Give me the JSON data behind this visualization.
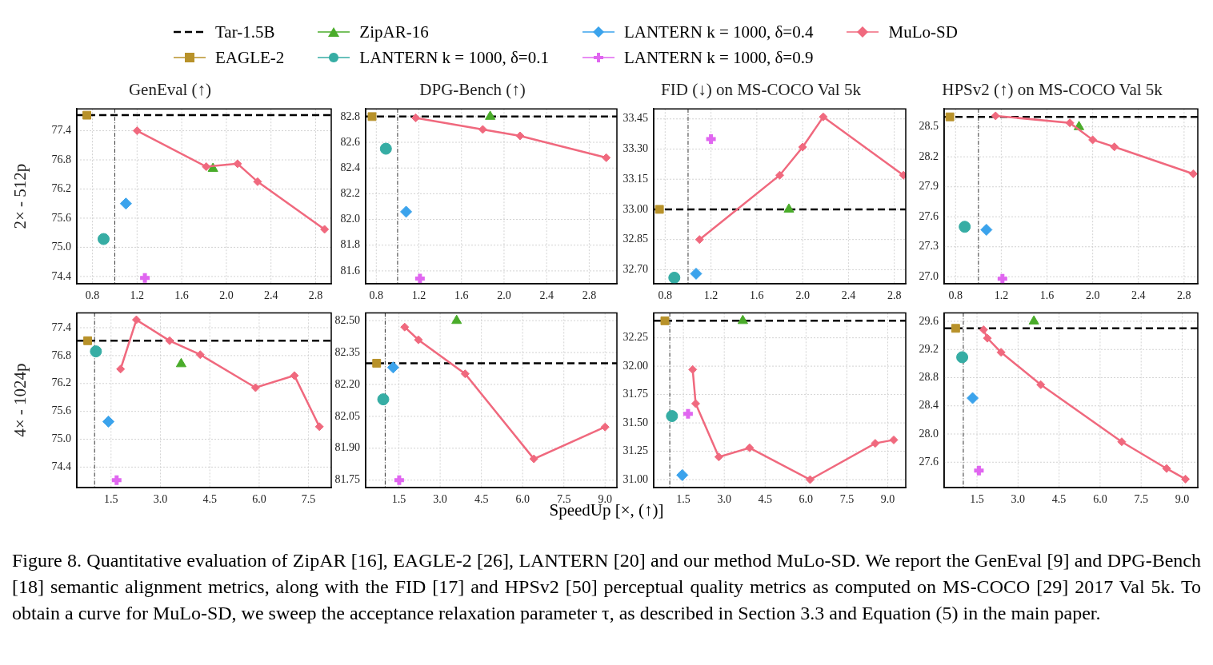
{
  "chart_data": [
    {
      "type": "scatter",
      "title": "GenEval (↑)",
      "ylabel": "2× - 512p",
      "legend": "top",
      "grid": true,
      "annotations": [
        "Figure 8. Quantitative evaluation of ZipAR [16], EAGLE-2 [26], LANTERN [20] and our method MuLo-SD. We report the GenEval [9] and DPG-Bench [18] semantic alignment metrics, along with the FID [17] and HPSv2 [50] perceptual quality metrics as computed on MS-COCO [29] 2017 Val 5k. To obtain a curve for MuLo-SD, we sweep the acceptance relaxation parameter τ, as described in Section 3.3 and Equation (5) in the main paper."
      ],
      "xlim": [
        0.66,
        2.94
      ],
      "xticks": [
        0.8,
        1.2,
        1.6,
        {
          "value": 2,
          "label": "2.0"
        },
        2.4,
        2.8
      ],
      "ylim": [
        74.25,
        77.85
      ],
      "yticks": [
        74.4,
        {
          "value": 75,
          "label": "75.0"
        },
        75.6,
        76.2,
        76.8,
        77.4
      ],
      "ref_lines": [
        {
          "axis": "y",
          "value": 77.72,
          "label": "Tar-1.5B",
          "color": "#000000",
          "line_style": "dashed"
        },
        {
          "axis": "x",
          "value": 1,
          "color": "#333333",
          "line_style": "dotted"
        }
      ],
      "series": [
        {
          "name": "EAGLE-2",
          "color": "#b8922a",
          "marker": "square",
          "x": [
            0.75
          ],
          "values": [
            77.72
          ]
        },
        {
          "name": "ZipAR-16",
          "color": "#4aac2a",
          "marker": "triangle",
          "x": [
            1.88
          ],
          "values": [
            76.62
          ]
        },
        {
          "name": "LANTERN k = 1000, δ=0.1",
          "color": "#36ada4",
          "marker": "circle",
          "x": [
            0.9
          ],
          "values": [
            75.17
          ]
        },
        {
          "name": "LANTERN k = 1000, δ=0.4",
          "color": "#3ba3ec",
          "marker": "diamond",
          "x": [
            1.1
          ],
          "values": [
            75.9
          ]
        },
        {
          "name": "LANTERN k = 1000, δ=0.9",
          "color": "#e066f0",
          "marker": "cross",
          "x": [
            1.27
          ],
          "values": [
            74.37
          ]
        },
        {
          "name": "MuLo-SD",
          "type": "line",
          "color": "#f0697e",
          "marker": "diamond",
          "x": [
            1.2,
            1.82,
            2.1,
            2.28,
            2.88
          ],
          "values": [
            77.4,
            76.66,
            76.72,
            76.35,
            75.37
          ]
        }
      ]
    },
    {
      "type": "scatter",
      "title": "DPG-Bench (↑)",
      "grid": true,
      "xlim": [
        0.7,
        3.06
      ],
      "xticks": [
        0.8,
        1.2,
        1.6,
        {
          "value": 2,
          "label": "2.0"
        },
        2.4,
        2.8
      ],
      "ylim": [
        81.5,
        82.86
      ],
      "yticks": [
        81.6,
        81.8,
        {
          "value": 82,
          "label": "82.0"
        },
        82.2,
        82.4,
        82.6,
        82.8
      ],
      "ref_lines": [
        {
          "axis": "y",
          "value": 82.8,
          "color": "#000000",
          "line_style": "dashed"
        },
        {
          "axis": "x",
          "value": 1,
          "color": "#333333",
          "line_style": "dotted"
        }
      ],
      "series": [
        {
          "color": "#b8922a",
          "marker": "square",
          "x": [
            0.76
          ],
          "values": [
            82.8
          ]
        },
        {
          "color": "#4aac2a",
          "marker": "triangle",
          "x": [
            1.87
          ],
          "values": [
            82.8
          ]
        },
        {
          "color": "#36ada4",
          "marker": "circle",
          "x": [
            0.89
          ],
          "values": [
            82.55
          ]
        },
        {
          "color": "#3ba3ec",
          "marker": "diamond",
          "x": [
            1.08
          ],
          "values": [
            82.06
          ]
        },
        {
          "color": "#e066f0",
          "marker": "cross",
          "x": [
            1.21
          ],
          "values": [
            81.54
          ]
        },
        {
          "type": "line",
          "color": "#f0697e",
          "marker": "diamond",
          "x": [
            1.17,
            1.8,
            2.15,
            2.96
          ],
          "values": [
            82.79,
            82.7,
            82.65,
            82.48
          ]
        }
      ]
    },
    {
      "type": "scatter",
      "title": "FID (↓) on MS-COCO Val 5k",
      "grid": true,
      "xlim": [
        0.7,
        2.9
      ],
      "xticks": [
        0.8,
        1.2,
        1.6,
        {
          "value": 2,
          "label": "2.0"
        },
        2.4,
        2.8
      ],
      "ylim": [
        32.63,
        33.5
      ],
      "yticks": [
        {
          "value": 32.7,
          "label": "32.70"
        },
        32.85,
        {
          "value": 33,
          "label": "33.00"
        },
        33.15,
        {
          "value": 33.3,
          "label": "33.30"
        },
        33.45
      ],
      "ref_lines": [
        {
          "axis": "y",
          "value": 33,
          "color": "#000000",
          "line_style": "dashed"
        },
        {
          "axis": "x",
          "value": 1,
          "color": "#333333",
          "line_style": "dotted"
        }
      ],
      "series": [
        {
          "color": "#b8922a",
          "marker": "square",
          "x": [
            0.75
          ],
          "values": [
            33
          ]
        },
        {
          "color": "#4aac2a",
          "marker": "triangle",
          "x": [
            1.88
          ],
          "values": [
            33
          ]
        },
        {
          "color": "#36ada4",
          "marker": "circle",
          "x": [
            0.88
          ],
          "values": [
            32.66
          ]
        },
        {
          "color": "#3ba3ec",
          "marker": "diamond",
          "x": [
            1.07
          ],
          "values": [
            32.68
          ]
        },
        {
          "color": "#e066f0",
          "marker": "cross",
          "x": [
            1.2
          ],
          "values": [
            33.35
          ]
        },
        {
          "type": "line",
          "color": "#f0697e",
          "marker": "diamond",
          "x": [
            1.1,
            1.8,
            2,
            2.18,
            2.88
          ],
          "values": [
            32.85,
            33.17,
            33.31,
            33.46,
            33.17
          ]
        }
      ]
    },
    {
      "type": "scatter",
      "title": "HPSv2 (↑) on MS-COCO Val 5k",
      "grid": true,
      "xlim": [
        0.7,
        2.92
      ],
      "xticks": [
        0.8,
        1.2,
        1.6,
        {
          "value": 2,
          "label": "2.0"
        },
        2.4,
        2.8
      ],
      "ylim": [
        26.93,
        28.68
      ],
      "yticks": [
        {
          "value": 27,
          "label": "27.0"
        },
        27.3,
        27.6,
        27.9,
        28.2,
        28.5
      ],
      "ref_lines": [
        {
          "axis": "y",
          "value": 28.6,
          "color": "#000000",
          "line_style": "dashed"
        },
        {
          "axis": "x",
          "value": 1,
          "color": "#333333",
          "line_style": "dotted"
        }
      ],
      "series": [
        {
          "color": "#b8922a",
          "marker": "square",
          "x": [
            0.75
          ],
          "values": [
            28.6
          ]
        },
        {
          "color": "#4aac2a",
          "marker": "triangle",
          "x": [
            1.88
          ],
          "values": [
            28.5
          ]
        },
        {
          "color": "#36ada4",
          "marker": "circle",
          "x": [
            0.88
          ],
          "values": [
            27.5
          ]
        },
        {
          "color": "#3ba3ec",
          "marker": "diamond",
          "x": [
            1.07
          ],
          "values": [
            27.47
          ]
        },
        {
          "color": "#e066f0",
          "marker": "cross",
          "x": [
            1.21
          ],
          "values": [
            26.98
          ]
        },
        {
          "type": "line",
          "color": "#f0697e",
          "marker": "diamond",
          "x": [
            1.15,
            1.8,
            2,
            2.19,
            2.88
          ],
          "values": [
            28.61,
            28.54,
            28.37,
            28.3,
            28.03
          ]
        }
      ]
    },
    {
      "type": "scatter",
      "ylabel": "4× - 1024p",
      "grid": true,
      "xlim": [
        0.46,
        8.19
      ],
      "xticks": [
        1.5,
        {
          "value": 3,
          "label": "3.0"
        },
        4.5,
        {
          "value": 6,
          "label": "6.0"
        },
        7.5
      ],
      "ylim": [
        73.96,
        77.72
      ],
      "yticks": [
        74.4,
        {
          "value": 75,
          "label": "75.0"
        },
        75.6,
        76.2,
        76.8,
        77.4
      ],
      "ref_lines": [
        {
          "axis": "y",
          "value": 77.12,
          "color": "#000000",
          "line_style": "dashed"
        },
        {
          "axis": "x",
          "value": 1,
          "color": "#333333",
          "line_style": "dotted"
        }
      ],
      "series": [
        {
          "color": "#b8922a",
          "marker": "square",
          "x": [
            0.79
          ],
          "values": [
            77.12
          ]
        },
        {
          "color": "#4aac2a",
          "marker": "triangle",
          "x": [
            3.63
          ],
          "values": [
            76.62
          ]
        },
        {
          "color": "#36ada4",
          "marker": "circle",
          "x": [
            1.04
          ],
          "values": [
            76.89
          ]
        },
        {
          "color": "#3ba3ec",
          "marker": "diamond",
          "x": [
            1.42
          ],
          "values": [
            75.38
          ]
        },
        {
          "color": "#e066f0",
          "marker": "cross",
          "x": [
            1.67
          ],
          "values": [
            74.12
          ]
        },
        {
          "type": "line",
          "color": "#f0697e",
          "marker": "diamond",
          "x": [
            1.79,
            2.27,
            3.28,
            4.21,
            5.89,
            7.07,
            7.83
          ],
          "values": [
            76.51,
            77.57,
            77.12,
            76.82,
            76.11,
            76.37,
            75.27
          ]
        }
      ]
    },
    {
      "type": "scatter",
      "xlabel": "SpeedUp [×, (↑)]",
      "grid": true,
      "xlim": [
        0.29,
        9.43
      ],
      "xticks": [
        1.5,
        {
          "value": 3,
          "label": "3.0"
        },
        4.5,
        {
          "value": 6,
          "label": "6.0"
        },
        7.5,
        {
          "value": 9,
          "label": "9.0"
        }
      ],
      "ylim": [
        81.715,
        82.537
      ],
      "yticks": [
        81.75,
        {
          "value": 81.9,
          "label": "81.90"
        },
        82.05,
        {
          "value": 82.2,
          "label": "82.20"
        },
        82.35,
        {
          "value": 82.5,
          "label": "82.50"
        }
      ],
      "ref_lines": [
        {
          "axis": "y",
          "value": 82.3,
          "color": "#000000",
          "line_style": "dashed"
        },
        {
          "axis": "x",
          "value": 1,
          "color": "#333333",
          "line_style": "dotted"
        }
      ],
      "series": [
        {
          "color": "#b8922a",
          "marker": "square",
          "x": [
            0.69
          ],
          "values": [
            82.3
          ]
        },
        {
          "color": "#4aac2a",
          "marker": "triangle",
          "x": [
            3.6
          ],
          "values": [
            82.5
          ]
        },
        {
          "color": "#36ada4",
          "marker": "circle",
          "x": [
            0.93
          ],
          "values": [
            82.13
          ]
        },
        {
          "color": "#3ba3ec",
          "marker": "diamond",
          "x": [
            1.29
          ],
          "values": [
            82.28
          ]
        },
        {
          "color": "#e066f0",
          "marker": "cross",
          "x": [
            1.51
          ],
          "values": [
            81.75
          ]
        },
        {
          "type": "line",
          "color": "#f0697e",
          "marker": "diamond",
          "x": [
            1.71,
            2.21,
            3.91,
            6.41,
            9.0
          ],
          "values": [
            82.47,
            82.41,
            82.25,
            81.85,
            82.0
          ]
        }
      ]
    },
    {
      "type": "scatter",
      "grid": true,
      "xlim": [
        0.41,
        9.66
      ],
      "xticks": [
        1.5,
        {
          "value": 3,
          "label": "3.0"
        },
        4.5,
        {
          "value": 6,
          "label": "6.0"
        },
        7.5,
        {
          "value": 9,
          "label": "9.0"
        }
      ],
      "ylim": [
        30.93,
        32.47
      ],
      "yticks": [
        {
          "value": 31,
          "label": "31.00"
        },
        31.25,
        {
          "value": 31.5,
          "label": "31.50"
        },
        31.75,
        {
          "value": 32,
          "label": "32.00"
        },
        32.25
      ],
      "ref_lines": [
        {
          "axis": "y",
          "value": 32.4,
          "color": "#000000",
          "line_style": "dashed"
        },
        {
          "axis": "x",
          "value": 1,
          "color": "#333333",
          "line_style": "dotted"
        }
      ],
      "series": [
        {
          "color": "#b8922a",
          "marker": "square",
          "x": [
            0.82
          ],
          "values": [
            32.4
          ]
        },
        {
          "color": "#4aac2a",
          "marker": "triangle",
          "x": [
            3.68
          ],
          "values": [
            32.4
          ]
        },
        {
          "color": "#36ada4",
          "marker": "circle",
          "x": [
            1.08
          ],
          "values": [
            31.56
          ]
        },
        {
          "color": "#3ba3ec",
          "marker": "diamond",
          "x": [
            1.46
          ],
          "values": [
            31.04
          ]
        },
        {
          "color": "#e066f0",
          "marker": "cross",
          "x": [
            1.67
          ],
          "values": [
            31.58
          ]
        },
        {
          "type": "line",
          "color": "#f0697e",
          "marker": "diamond",
          "x": [
            1.84,
            1.95,
            2.8,
            3.93,
            6.15,
            8.54,
            9.22
          ],
          "values": [
            31.97,
            31.67,
            31.2,
            31.28,
            31.0,
            31.32,
            31.35
          ]
        }
      ]
    },
    {
      "type": "scatter",
      "grid": true,
      "xlim": [
        0.3,
        9.57
      ],
      "xticks": [
        1.5,
        {
          "value": 3,
          "label": "3.0"
        },
        4.5,
        {
          "value": 6,
          "label": "6.0"
        },
        7.5,
        {
          "value": 9,
          "label": "9.0"
        }
      ],
      "ylim": [
        27.24,
        29.72
      ],
      "yticks": [
        27.6,
        {
          "value": 28,
          "label": "28.0"
        },
        28.4,
        28.8,
        29.2,
        29.6
      ],
      "ref_lines": [
        {
          "axis": "y",
          "value": 29.5,
          "color": "#000000",
          "line_style": "dashed"
        },
        {
          "axis": "x",
          "value": 1,
          "color": "#333333",
          "line_style": "dotted"
        }
      ],
      "series": [
        {
          "color": "#b8922a",
          "marker": "square",
          "x": [
            0.72
          ],
          "values": [
            29.5
          ]
        },
        {
          "color": "#4aac2a",
          "marker": "triangle",
          "x": [
            3.58
          ],
          "values": [
            29.6
          ]
        },
        {
          "color": "#36ada4",
          "marker": "circle",
          "x": [
            0.96
          ],
          "values": [
            29.09
          ]
        },
        {
          "color": "#3ba3ec",
          "marker": "diamond",
          "x": [
            1.34
          ],
          "values": [
            28.51
          ]
        },
        {
          "color": "#e066f0",
          "marker": "cross",
          "x": [
            1.57
          ],
          "values": [
            27.48
          ]
        },
        {
          "type": "line",
          "color": "#f0697e",
          "marker": "diamond",
          "x": [
            1.74,
            1.88,
            2.38,
            3.83,
            6.79,
            8.43,
            9.12
          ],
          "values": [
            29.48,
            29.36,
            29.16,
            28.7,
            27.89,
            27.51,
            27.36
          ]
        }
      ]
    }
  ]
}
